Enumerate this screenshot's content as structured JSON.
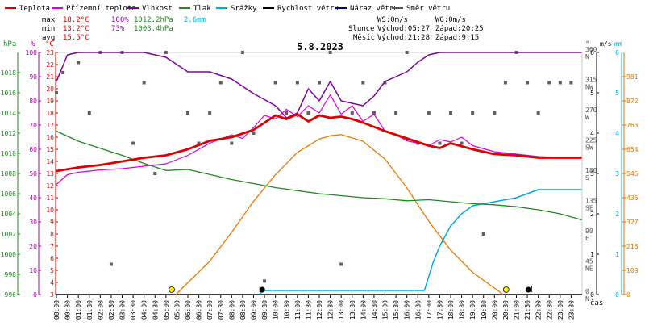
{
  "chart_data": {
    "type": "line",
    "title": "5.8.2023",
    "legend": [
      {
        "name": "Teplota",
        "color": "#dd0000"
      },
      {
        "name": "Přízemní teplota",
        "color": "#dd00dd"
      },
      {
        "name": "Vlhkost",
        "color": "#8000a0"
      },
      {
        "name": "Tlak",
        "color": "#228822"
      },
      {
        "name": "Srážky",
        "color": "#00aadd"
      },
      {
        "name": "Rychlost větru",
        "color": "#000000"
      },
      {
        "name": "Náraz větru",
        "color": "#000080"
      },
      {
        "name": "Směr větru",
        "color": "#555555"
      }
    ],
    "stats": {
      "max_label": "max",
      "min_label": "min",
      "avg_label": "avg",
      "max_temp": "18.2°C",
      "max_hum": "100%",
      "max_press": "1012.2hPa",
      "max_rain": "2.6mm",
      "min_temp": "13.2°C",
      "min_hum": "73%",
      "min_press": "1003.4hPa",
      "avg_temp": "15.5°C"
    },
    "wind_info": {
      "ws": "WS:0m/s",
      "wg": "WG:0m/s"
    },
    "sun_info": {
      "label": "Slunce",
      "rise": "Východ:05:27",
      "set": "Západ:20:25"
    },
    "moon_info": {
      "label": "Měsíc",
      "rise": "Východ:21:28",
      "set": "Západ:9:15"
    },
    "axes": {
      "pressure": {
        "unit": "hPa",
        "ticks": [
          "996",
          "998",
          "1000",
          "1002",
          "1004",
          "1006",
          "1008",
          "1010",
          "1012",
          "1014",
          "1016",
          "1018"
        ]
      },
      "humidity": {
        "unit": "%",
        "ticks": [
          "0",
          "10",
          "20",
          "30",
          "40",
          "50",
          "60",
          "70",
          "80",
          "90",
          "100"
        ]
      },
      "temperature": {
        "unit": "°C",
        "ticks": [
          "3",
          "4",
          "5",
          "6",
          "7",
          "8",
          "9",
          "10",
          "11",
          "12",
          "13",
          "14",
          "15",
          "16",
          "17",
          "18",
          "19",
          "20",
          "21",
          "22",
          "23"
        ]
      },
      "direction": {
        "unit": "°",
        "ticks": [
          {
            "deg": "0",
            "dir": "N"
          },
          {
            "deg": "45",
            "dir": "NE"
          },
          {
            "deg": "90",
            "dir": "E"
          },
          {
            "deg": "135",
            "dir": "SE"
          },
          {
            "deg": "180",
            "dir": "S"
          },
          {
            "deg": "225",
            "dir": "SW"
          },
          {
            "deg": "270",
            "dir": "W"
          },
          {
            "deg": "315",
            "dir": "NW"
          },
          {
            "deg": "360",
            "dir": "N"
          }
        ]
      },
      "wind_speed": {
        "unit": "m/s",
        "ticks": [
          "0",
          "1",
          "2",
          "3",
          "4",
          "5",
          "6"
        ]
      },
      "rain": {
        "unit": "mm",
        "ticks": [
          "0",
          "1",
          "2",
          "3",
          "4",
          "5",
          "6"
        ]
      },
      "solar": {
        "ticks": [
          "0",
          "109",
          "218",
          "327",
          "436",
          "545",
          "654",
          "763",
          "872",
          "981"
        ]
      },
      "time_unit": "čas",
      "time_ticks": [
        "00:00",
        "00:30",
        "01:00",
        "01:30",
        "02:00",
        "02:30",
        "03:00",
        "03:30",
        "04:00",
        "04:30",
        "05:00",
        "05:30",
        "06:00",
        "06:30",
        "07:00",
        "07:30",
        "08:00",
        "08:30",
        "09:00",
        "09:30",
        "10:00",
        "10:30",
        "11:00",
        "11:30",
        "12:00",
        "12:30",
        "13:00",
        "13:30",
        "14:00",
        "14:30",
        "15:00",
        "15:30",
        "16:00",
        "16:30",
        "17:00",
        "17:30",
        "18:00",
        "18:30",
        "19:00",
        "19:30",
        "20:00",
        "20:30",
        "21:00",
        "21:30",
        "22:00",
        "22:30",
        "23:00",
        "23:30"
      ]
    },
    "temperature": [
      [
        0,
        13.2
      ],
      [
        1,
        13.5
      ],
      [
        2,
        13.7
      ],
      [
        3,
        14.0
      ],
      [
        4,
        14.3
      ],
      [
        5,
        14.5
      ],
      [
        6,
        15.0
      ],
      [
        7,
        15.7
      ],
      [
        8,
        16.0
      ],
      [
        9,
        16.6
      ],
      [
        9.5,
        17.2
      ],
      [
        10,
        17.8
      ],
      [
        10.5,
        17.5
      ],
      [
        11,
        17.9
      ],
      [
        11.5,
        17.3
      ],
      [
        12,
        17.8
      ],
      [
        12.5,
        17.6
      ],
      [
        13,
        17.7
      ],
      [
        13.5,
        17.5
      ],
      [
        14,
        17.2
      ],
      [
        15,
        16.5
      ],
      [
        16,
        15.9
      ],
      [
        17,
        15.3
      ],
      [
        17.5,
        15.1
      ],
      [
        18,
        15.5
      ],
      [
        19,
        15.0
      ],
      [
        20,
        14.6
      ],
      [
        21,
        14.5
      ],
      [
        22,
        14.3
      ],
      [
        23,
        14.3
      ],
      [
        23.98,
        14.3
      ]
    ],
    "ground_temperature": [
      [
        0,
        12.1
      ],
      [
        0.5,
        12.9
      ],
      [
        1,
        13.1
      ],
      [
        2,
        13.3
      ],
      [
        3,
        13.4
      ],
      [
        4,
        13.6
      ],
      [
        5,
        13.8
      ],
      [
        6,
        14.5
      ],
      [
        7,
        15.5
      ],
      [
        8,
        16.2
      ],
      [
        8.5,
        15.9
      ],
      [
        9,
        16.8
      ],
      [
        9.5,
        17.8
      ],
      [
        10,
        17.5
      ],
      [
        10.5,
        18.3
      ],
      [
        11,
        17.7
      ],
      [
        11.5,
        18.6
      ],
      [
        12,
        18.0
      ],
      [
        12.5,
        19.5
      ],
      [
        13,
        17.9
      ],
      [
        13.5,
        18.6
      ],
      [
        14,
        17.3
      ],
      [
        14.5,
        17.9
      ],
      [
        15,
        16.5
      ],
      [
        15.5,
        16.2
      ],
      [
        16,
        15.7
      ],
      [
        16.5,
        15.5
      ],
      [
        17,
        15.3
      ],
      [
        17.5,
        15.8
      ],
      [
        18,
        15.6
      ],
      [
        18.5,
        16.0
      ],
      [
        19,
        15.3
      ],
      [
        20,
        14.8
      ],
      [
        21,
        14.6
      ],
      [
        22,
        14.4
      ],
      [
        23,
        14.3
      ],
      [
        23.98,
        14.3
      ]
    ],
    "humidity": [
      [
        0,
        88
      ],
      [
        0.5,
        99
      ],
      [
        1,
        100
      ],
      [
        4,
        100
      ],
      [
        5,
        98
      ],
      [
        6,
        92
      ],
      [
        7,
        92
      ],
      [
        8,
        89
      ],
      [
        9,
        83
      ],
      [
        10,
        78
      ],
      [
        10.5,
        73
      ],
      [
        11,
        75
      ],
      [
        11.5,
        85
      ],
      [
        12,
        80
      ],
      [
        12.5,
        88
      ],
      [
        13,
        80
      ],
      [
        14,
        78
      ],
      [
        14.5,
        82
      ],
      [
        15,
        88
      ],
      [
        16,
        92
      ],
      [
        16.5,
        96
      ],
      [
        17,
        99
      ],
      [
        17.5,
        100
      ],
      [
        23.98,
        100
      ]
    ],
    "pressure": [
      [
        0,
        1012.2
      ],
      [
        1,
        1011.2
      ],
      [
        2,
        1010.5
      ],
      [
        3,
        1009.8
      ],
      [
        4,
        1009.0
      ],
      [
        5,
        1008.3
      ],
      [
        6,
        1008.4
      ],
      [
        7,
        1007.9
      ],
      [
        8,
        1007.4
      ],
      [
        9,
        1007.0
      ],
      [
        10,
        1006.6
      ],
      [
        11,
        1006.3
      ],
      [
        12,
        1006.0
      ],
      [
        13,
        1005.8
      ],
      [
        14,
        1005.6
      ],
      [
        15,
        1005.5
      ],
      [
        16,
        1005.3
      ],
      [
        17,
        1005.4
      ],
      [
        18,
        1005.2
      ],
      [
        19,
        1005.0
      ],
      [
        20,
        1004.9
      ],
      [
        21,
        1004.7
      ],
      [
        22,
        1004.4
      ],
      [
        23,
        1004.0
      ],
      [
        23.98,
        1003.4
      ]
    ],
    "rain": [
      [
        9.3,
        0
      ],
      [
        9.4,
        0.1
      ],
      [
        16.8,
        0.1
      ],
      [
        17.2,
        0.8
      ],
      [
        17.5,
        1.2
      ],
      [
        18,
        1.7
      ],
      [
        18.5,
        2.0
      ],
      [
        19,
        2.2
      ],
      [
        20,
        2.3
      ],
      [
        21,
        2.4
      ],
      [
        22,
        2.6
      ],
      [
        23.98,
        2.6
      ]
    ],
    "solar": [
      [
        5.45,
        0
      ],
      [
        7,
        150
      ],
      [
        8,
        280
      ],
      [
        9,
        420
      ],
      [
        10,
        540
      ],
      [
        11,
        640
      ],
      [
        12,
        700
      ],
      [
        12.5,
        715
      ],
      [
        13,
        720
      ],
      [
        14,
        690
      ],
      [
        15,
        610
      ],
      [
        16,
        480
      ],
      [
        17,
        330
      ],
      [
        18,
        200
      ],
      [
        19,
        100
      ],
      [
        20.4,
        0
      ]
    ],
    "wind_direction": [
      [
        0,
        300
      ],
      [
        0.3,
        330
      ],
      [
        1,
        345
      ],
      [
        1.5,
        270
      ],
      [
        2,
        360
      ],
      [
        2.5,
        45
      ],
      [
        3,
        360
      ],
      [
        3.5,
        225
      ],
      [
        4,
        315
      ],
      [
        4.5,
        180
      ],
      [
        5,
        360
      ],
      [
        6,
        270
      ],
      [
        6.5,
        225
      ],
      [
        7,
        270
      ],
      [
        7.5,
        315
      ],
      [
        8,
        225
      ],
      [
        8.5,
        360
      ],
      [
        9,
        240
      ],
      [
        9.5,
        20
      ],
      [
        10,
        315
      ],
      [
        10.5,
        270
      ],
      [
        11,
        315
      ],
      [
        11.5,
        270
      ],
      [
        12,
        315
      ],
      [
        12.5,
        360
      ],
      [
        13,
        45
      ],
      [
        13.5,
        270
      ],
      [
        14,
        315
      ],
      [
        14.5,
        270
      ],
      [
        15,
        315
      ],
      [
        15.5,
        270
      ],
      [
        16,
        360
      ],
      [
        16.5,
        225
      ],
      [
        17,
        270
      ],
      [
        17.5,
        225
      ],
      [
        18,
        270
      ],
      [
        18.5,
        225
      ],
      [
        19,
        270
      ],
      [
        19.5,
        90
      ],
      [
        20,
        270
      ],
      [
        20.5,
        315
      ],
      [
        21,
        360
      ],
      [
        21.5,
        315
      ],
      [
        22,
        270
      ],
      [
        22.5,
        315
      ],
      [
        23,
        315
      ],
      [
        23.5,
        315
      ]
    ]
  }
}
